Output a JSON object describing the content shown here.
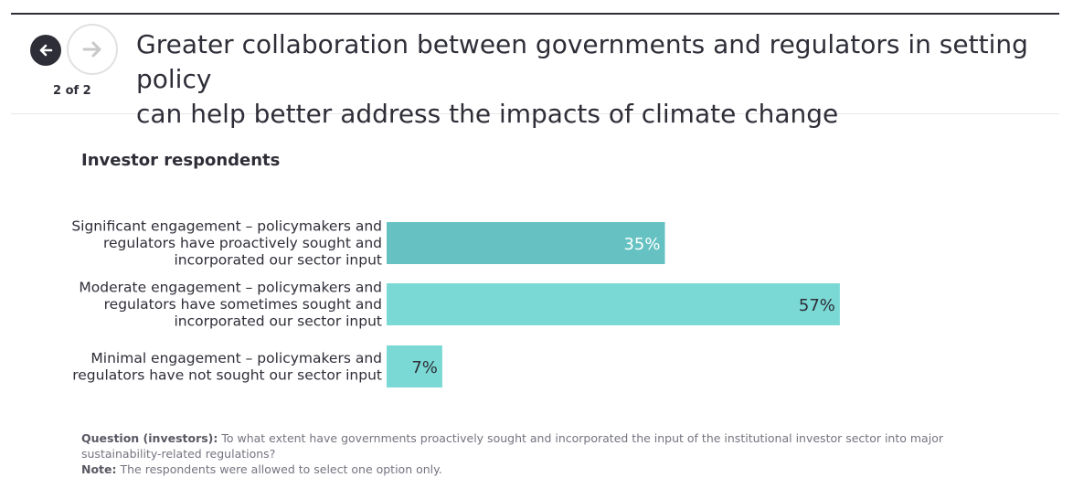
{
  "header": {
    "title_line1": "Greater collaboration between governments and regulators in setting policy",
    "title_line2": "can help better address the impacts of climate change",
    "counter": "2 of 2"
  },
  "nav": {
    "prev_icon": "arrow-left-icon",
    "next_icon": "arrow-right-icon"
  },
  "colors": {
    "bar_dark": "#66c2c2",
    "bar_light": "#7ad9d4",
    "text": "#2e2e38"
  },
  "chart_data": {
    "type": "bar",
    "orientation": "horizontal",
    "title": "Investor respondents",
    "categories": [
      [
        "Significant engagement – policymakers and",
        "regulators have proactively sought and",
        "incorporated our sector input"
      ],
      [
        "Moderate engagement – policymakers and",
        "regulators have sometimes sought and",
        "incorporated our sector input"
      ],
      [
        "Minimal engagement – policymakers and",
        "regulators have not sought our sector input"
      ]
    ],
    "values": [
      35,
      57,
      7
    ],
    "value_labels": [
      "35%",
      "57%",
      "7%"
    ],
    "xlim": [
      0,
      100
    ],
    "grid": false
  },
  "notes": {
    "question_label": "Question (investors):",
    "question_text": " To what extent have governments proactively sought and incorporated the input of the institutional investor sector into major sustainability-related regulations?",
    "note_label": "Note:",
    "note_text": " The respondents were allowed to select one option only."
  }
}
